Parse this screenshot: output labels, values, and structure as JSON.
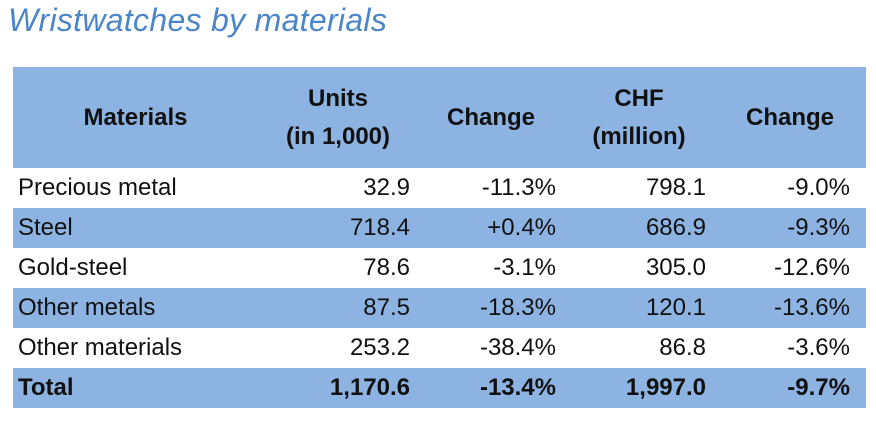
{
  "title": "Wristwatches by materials",
  "headers": {
    "materials": "Materials",
    "units_line1": "Units",
    "units_line2": "(in 1,000)",
    "change1": "Change",
    "chf_line1": "CHF",
    "chf_line2": "(million)",
    "change2": "Change"
  },
  "rows": [
    {
      "material": "Precious metal",
      "units": "32.9",
      "units_change": "-11.3%",
      "chf": "798.1",
      "chf_change": "-9.0%"
    },
    {
      "material": "Steel",
      "units": "718.4",
      "units_change": "+0.4%",
      "chf": "686.9",
      "chf_change": "-9.3%"
    },
    {
      "material": "Gold-steel",
      "units": "78.6",
      "units_change": "-3.1%",
      "chf": "305.0",
      "chf_change": "-12.6%"
    },
    {
      "material": "Other metals",
      "units": "87.5",
      "units_change": "-18.3%",
      "chf": "120.1",
      "chf_change": "-13.6%"
    },
    {
      "material": "Other materials",
      "units": "253.2",
      "units_change": "-38.4%",
      "chf": "86.8",
      "chf_change": "-3.6%"
    }
  ],
  "total": {
    "material": "Total",
    "units": "1,170.6",
    "units_change": "-13.4%",
    "chf": "1,997.0",
    "chf_change": "-9.7%"
  },
  "colors": {
    "header_fill": "#8db3e2",
    "title": "#4a86c8"
  }
}
